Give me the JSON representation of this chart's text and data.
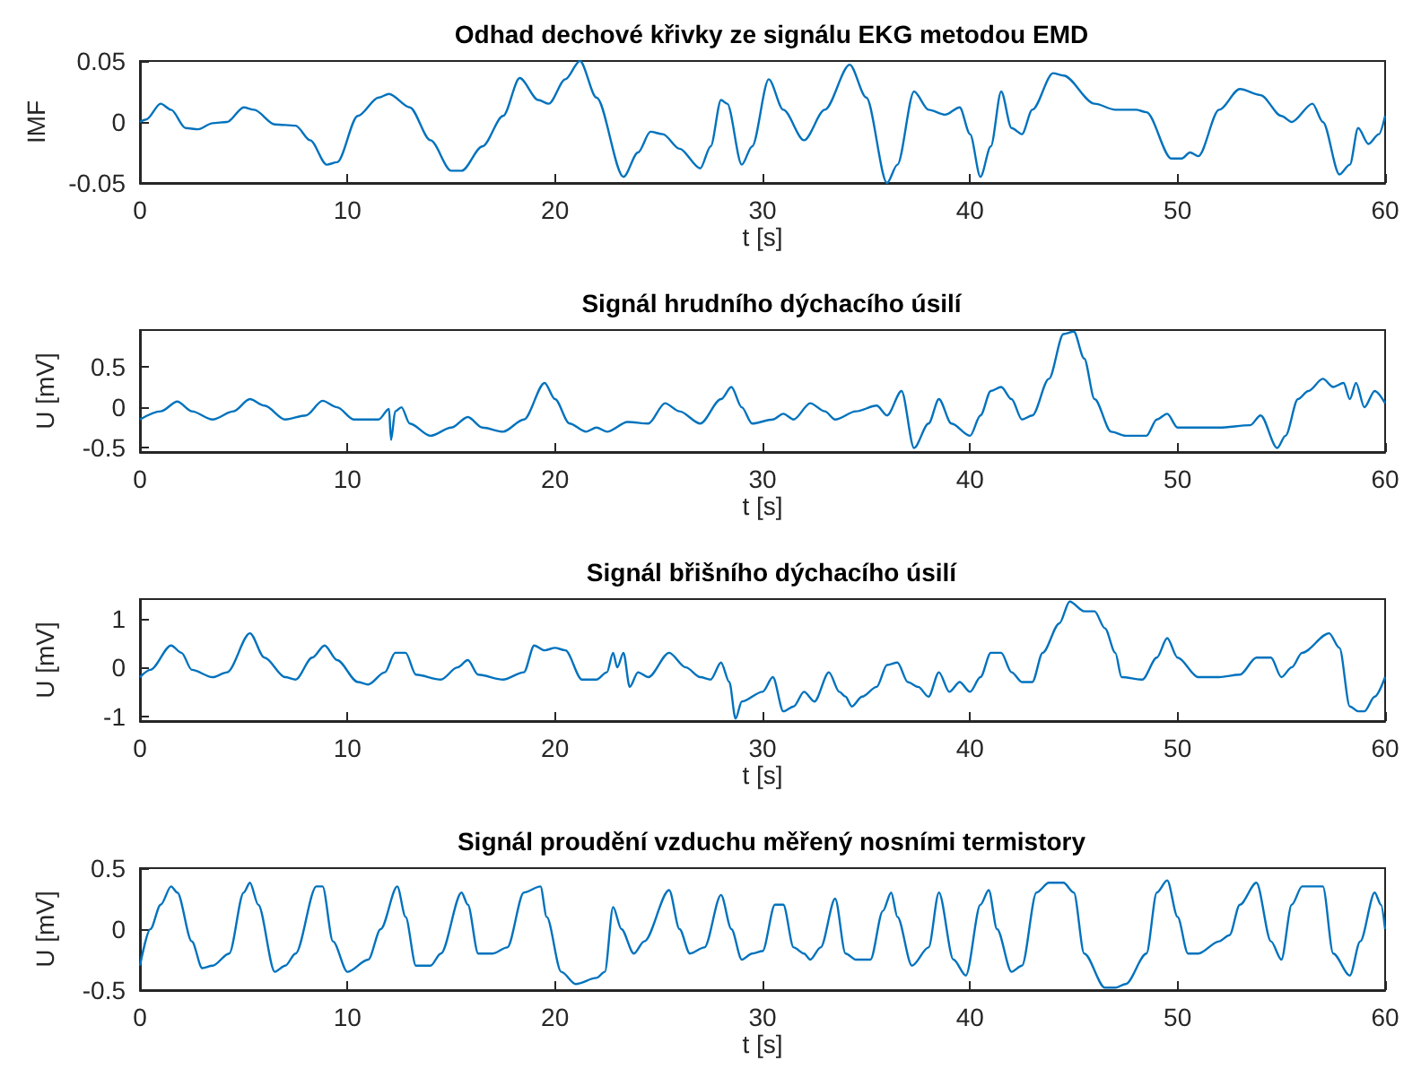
{
  "chart_data": [
    {
      "type": "line",
      "title": "Odhad dechové křivky ze signálu EKG metodou EMD",
      "xlabel": "t [s]",
      "ylabel": "IMF",
      "xlim": [
        0,
        60
      ],
      "xticks": [
        0,
        10,
        20,
        30,
        40,
        50,
        60
      ],
      "ylim": [
        -0.05,
        0.05
      ],
      "yticks": [
        -0.05,
        0,
        0.05
      ],
      "series": [
        {
          "color": "#0072bd",
          "x": [
            0,
            0.3,
            1,
            1.5,
            2.2,
            2.8,
            3.5,
            4.2,
            5,
            5.5,
            6.5,
            7.5,
            8.2,
            9,
            9.5,
            10.5,
            11.5,
            12,
            13,
            14,
            15,
            15.5,
            16.5,
            17.5,
            18.3,
            19.2,
            19.7,
            20.5,
            21.2,
            22,
            23.3,
            24,
            24.6,
            25.2,
            26,
            27,
            27.5,
            28,
            28.3,
            29,
            29.5,
            30.3,
            31,
            32,
            33,
            34.2,
            35,
            36,
            36.5,
            37.3,
            38,
            38.8,
            39.5,
            40,
            40.5,
            41,
            41.5,
            42,
            42.5,
            43,
            44,
            44.5,
            46,
            47,
            48,
            48.5,
            49.7,
            50.2,
            50.6,
            51,
            52,
            53,
            54,
            55,
            55.5,
            56.5,
            57,
            57.8,
            58.3,
            58.7,
            59.2,
            59.7,
            60
          ],
          "values": [
            0,
            0.002,
            0.015,
            0.01,
            -0.005,
            -0.006,
            -0.001,
            0,
            0.012,
            0.01,
            -0.002,
            -0.003,
            -0.015,
            -0.035,
            -0.033,
            0.005,
            0.02,
            0.023,
            0.012,
            -0.015,
            -0.04,
            -0.04,
            -0.02,
            0.005,
            0.036,
            0.018,
            0.015,
            0.035,
            0.05,
            0.02,
            -0.045,
            -0.025,
            -0.008,
            -0.01,
            -0.022,
            -0.038,
            -0.02,
            0.018,
            0.015,
            -0.035,
            -0.02,
            0.035,
            0.01,
            -0.015,
            0.01,
            0.047,
            0.02,
            -0.05,
            -0.035,
            0.025,
            0.01,
            0.006,
            0.012,
            -0.01,
            -0.045,
            -0.02,
            0.025,
            -0.005,
            -0.01,
            0.01,
            0.04,
            0.038,
            0.015,
            0.01,
            0.01,
            0.008,
            -0.03,
            -0.03,
            -0.025,
            -0.028,
            0.01,
            0.027,
            0.022,
            0.005,
            0,
            0.015,
            0,
            -0.043,
            -0.035,
            -0.005,
            -0.018,
            -0.01,
            0.005
          ]
        }
      ]
    },
    {
      "type": "line",
      "title": "Signál hrudního dýchacího úsilí",
      "xlabel": "t [s]",
      "ylabel": "U [mV]",
      "xlim": [
        0,
        60
      ],
      "xticks": [
        0,
        10,
        20,
        30,
        40,
        50,
        60
      ],
      "ylim": [
        -0.55,
        0.95
      ],
      "yticks": [
        -0.5,
        0,
        0.5
      ],
      "series": [
        {
          "color": "#0072bd",
          "x": [
            0,
            1,
            1.8,
            2.5,
            3.5,
            4.5,
            5.3,
            6,
            7,
            8,
            8.8,
            9.5,
            10.3,
            11.5,
            12,
            12.1,
            12.3,
            12.6,
            13,
            14,
            15,
            15.8,
            16.5,
            17.5,
            18.5,
            19.5,
            20,
            20.7,
            21.5,
            22,
            22.5,
            23.5,
            24.5,
            25.3,
            26,
            27,
            28,
            28.5,
            29,
            29.5,
            30.5,
            31,
            31.5,
            32.3,
            33,
            33.5,
            34.5,
            35.5,
            36,
            36.7,
            37.3,
            38,
            38.5,
            39.1,
            40,
            40.5,
            41,
            41.5,
            42,
            42.5,
            43,
            43.8,
            44.5,
            45,
            45.5,
            46,
            46.8,
            47.5,
            48.5,
            49,
            49.5,
            50,
            51,
            52,
            53.5,
            54,
            54.8,
            55.2,
            55.8,
            56.3,
            57,
            57.5,
            58,
            58.3,
            58.6,
            59,
            59.5,
            60
          ],
          "values": [
            -0.15,
            -0.05,
            0.07,
            -0.05,
            -0.15,
            -0.05,
            0.1,
            0.02,
            -0.15,
            -0.1,
            0.08,
            0,
            -0.15,
            -0.15,
            -0.02,
            -0.4,
            -0.05,
            0,
            -0.2,
            -0.35,
            -0.25,
            -0.12,
            -0.25,
            -0.3,
            -0.15,
            0.3,
            0.1,
            -0.2,
            -0.3,
            -0.25,
            -0.3,
            -0.18,
            -0.2,
            0.05,
            -0.05,
            -0.2,
            0.1,
            0.25,
            0,
            -0.2,
            -0.15,
            -0.08,
            -0.15,
            0.05,
            -0.05,
            -0.15,
            -0.05,
            0.02,
            -0.1,
            0.2,
            -0.5,
            -0.2,
            0.1,
            -0.2,
            -0.35,
            -0.1,
            0.2,
            0.25,
            0.1,
            -0.15,
            -0.1,
            0.35,
            0.9,
            0.93,
            0.6,
            0.1,
            -0.3,
            -0.35,
            -0.35,
            -0.15,
            -0.08,
            -0.25,
            -0.25,
            -0.25,
            -0.22,
            -0.1,
            -0.5,
            -0.35,
            0.1,
            0.2,
            0.35,
            0.25,
            0.3,
            0.1,
            0.3,
            0,
            0.2,
            0.05
          ]
        }
      ]
    },
    {
      "type": "line",
      "title": "Signál břišního dýchacího úsilí",
      "xlabel": "t [s]",
      "ylabel": "U [mV]",
      "xlim": [
        0,
        60
      ],
      "xticks": [
        0,
        10,
        20,
        30,
        40,
        50,
        60
      ],
      "ylim": [
        -1.1,
        1.4
      ],
      "yticks": [
        -1,
        0,
        1
      ],
      "series": [
        {
          "color": "#0072bd",
          "x": [
            0,
            0.5,
            1.5,
            2,
            2.5,
            3.5,
            4.2,
            5.3,
            6,
            7,
            7.5,
            8.3,
            8.9,
            9.5,
            10.5,
            11,
            11.8,
            12.3,
            12.8,
            13.3,
            14.5,
            15.3,
            15.8,
            16.3,
            17.5,
            18.5,
            19,
            19.5,
            20,
            20.5,
            21.3,
            22,
            22.5,
            22.8,
            23,
            23.3,
            23.6,
            24,
            24.5,
            25.5,
            26.3,
            27,
            27.5,
            28,
            28.4,
            28.7,
            29,
            30,
            30.5,
            31,
            31.5,
            32,
            32.5,
            33.2,
            33.7,
            34,
            34.3,
            34.8,
            35.5,
            36,
            36.5,
            37,
            37.5,
            38,
            38.5,
            39,
            39.5,
            40,
            40.5,
            41,
            41.5,
            42,
            42.5,
            43,
            43.5,
            44.3,
            44.8,
            45.5,
            46,
            46.5,
            47,
            47.3,
            48.3,
            49,
            49.5,
            50,
            51,
            52,
            53,
            53.8,
            54.5,
            55,
            55.5,
            56,
            57.3,
            57.8,
            58.3,
            58.7,
            59,
            59.5,
            60
          ],
          "values": [
            -0.2,
            -0.05,
            0.45,
            0.3,
            -0.05,
            -0.2,
            -0.1,
            0.7,
            0.2,
            -0.2,
            -0.25,
            0.2,
            0.45,
            0.15,
            -0.3,
            -0.35,
            -0.1,
            0.3,
            0.3,
            -0.15,
            -0.25,
            0,
            0.15,
            -0.15,
            -0.25,
            -0.1,
            0.45,
            0.35,
            0.4,
            0.35,
            -0.25,
            -0.25,
            -0.1,
            0.3,
            0,
            0.3,
            -0.4,
            -0.1,
            -0.2,
            0.3,
            0,
            -0.2,
            -0.25,
            0.1,
            -0.3,
            -1.05,
            -0.7,
            -0.5,
            -0.2,
            -0.9,
            -0.8,
            -0.5,
            -0.7,
            -0.1,
            -0.5,
            -0.6,
            -0.8,
            -0.6,
            -0.4,
            0.05,
            0.1,
            -0.3,
            -0.4,
            -0.6,
            -0.1,
            -0.5,
            -0.3,
            -0.5,
            -0.2,
            0.3,
            0.3,
            -0.1,
            -0.3,
            -0.3,
            0.3,
            0.9,
            1.35,
            1.15,
            1.15,
            0.8,
            0.3,
            -0.2,
            -0.25,
            0.2,
            0.6,
            0.2,
            -0.2,
            -0.2,
            -0.15,
            0.2,
            0.2,
            -0.2,
            0,
            0.3,
            0.7,
            0.4,
            -0.8,
            -0.9,
            -0.9,
            -0.6,
            -0.2
          ]
        }
      ]
    },
    {
      "type": "line",
      "title": "Signál proudění vzduchu měřený nosními termistory",
      "xlabel": "t [s]",
      "ylabel": "U [mV]",
      "xlim": [
        0,
        60
      ],
      "xticks": [
        0,
        10,
        20,
        30,
        40,
        50,
        60
      ],
      "ylim": [
        -0.5,
        0.5
      ],
      "yticks": [
        -0.5,
        0,
        0.5
      ],
      "series": [
        {
          "color": "#0072bd",
          "x": [
            0,
            0.5,
            1,
            1.5,
            1.8,
            2.5,
            3,
            3.5,
            4.3,
            5,
            5.3,
            5.7,
            6.5,
            7,
            7.5,
            8.5,
            8.8,
            9.3,
            10,
            11,
            11.6,
            12.4,
            12.8,
            13.3,
            14,
            14.5,
            15.5,
            15.8,
            16.3,
            17,
            17.7,
            18.5,
            19.3,
            19.6,
            20.3,
            21,
            22,
            22.4,
            22.8,
            23.2,
            23.8,
            24.3,
            25.5,
            26,
            26.5,
            27.2,
            28,
            28.5,
            29,
            29.5,
            30,
            30.6,
            31,
            31.5,
            32,
            32.3,
            32.8,
            33.5,
            34,
            34.5,
            35.2,
            35.8,
            36.2,
            36.5,
            37.2,
            38,
            38.5,
            39.2,
            39.8,
            40.5,
            40.9,
            41.3,
            42,
            42.5,
            43.2,
            43.8,
            44.5,
            45,
            45.5,
            46.5,
            47,
            47.5,
            48.5,
            49,
            49.5,
            50,
            50.5,
            51,
            52,
            52.5,
            53,
            53.8,
            54.5,
            55,
            55.5,
            56,
            57,
            57.5,
            58.3,
            58.8,
            59.5,
            59.8,
            60
          ],
          "values": [
            -0.3,
            0,
            0.2,
            0.35,
            0.3,
            -0.1,
            -0.32,
            -0.3,
            -0.2,
            0.3,
            0.38,
            0.2,
            -0.35,
            -0.3,
            -0.2,
            0.35,
            0.35,
            -0.1,
            -0.35,
            -0.25,
            0,
            0.35,
            0.1,
            -0.3,
            -0.3,
            -0.2,
            0.3,
            0.2,
            -0.2,
            -0.2,
            -0.15,
            0.3,
            0.35,
            0.1,
            -0.35,
            -0.45,
            -0.4,
            -0.35,
            0.18,
            0,
            -0.2,
            -0.1,
            0.32,
            0,
            -0.2,
            -0.15,
            0.28,
            0,
            -0.25,
            -0.2,
            -0.18,
            0.2,
            0.2,
            -0.15,
            -0.2,
            -0.25,
            -0.15,
            0.25,
            -0.2,
            -0.25,
            -0.25,
            0.15,
            0.3,
            0.1,
            -0.3,
            -0.15,
            0.3,
            -0.25,
            -0.38,
            0.2,
            0.32,
            0,
            -0.35,
            -0.3,
            0.3,
            0.38,
            0.38,
            0.3,
            -0.2,
            -0.48,
            -0.48,
            -0.45,
            -0.2,
            0.3,
            0.4,
            0.1,
            -0.2,
            -0.2,
            -0.1,
            -0.05,
            0.2,
            0.38,
            -0.1,
            -0.25,
            0.2,
            0.35,
            0.35,
            -0.2,
            -0.38,
            -0.1,
            0.3,
            0.2,
            0
          ]
        }
      ]
    }
  ]
}
